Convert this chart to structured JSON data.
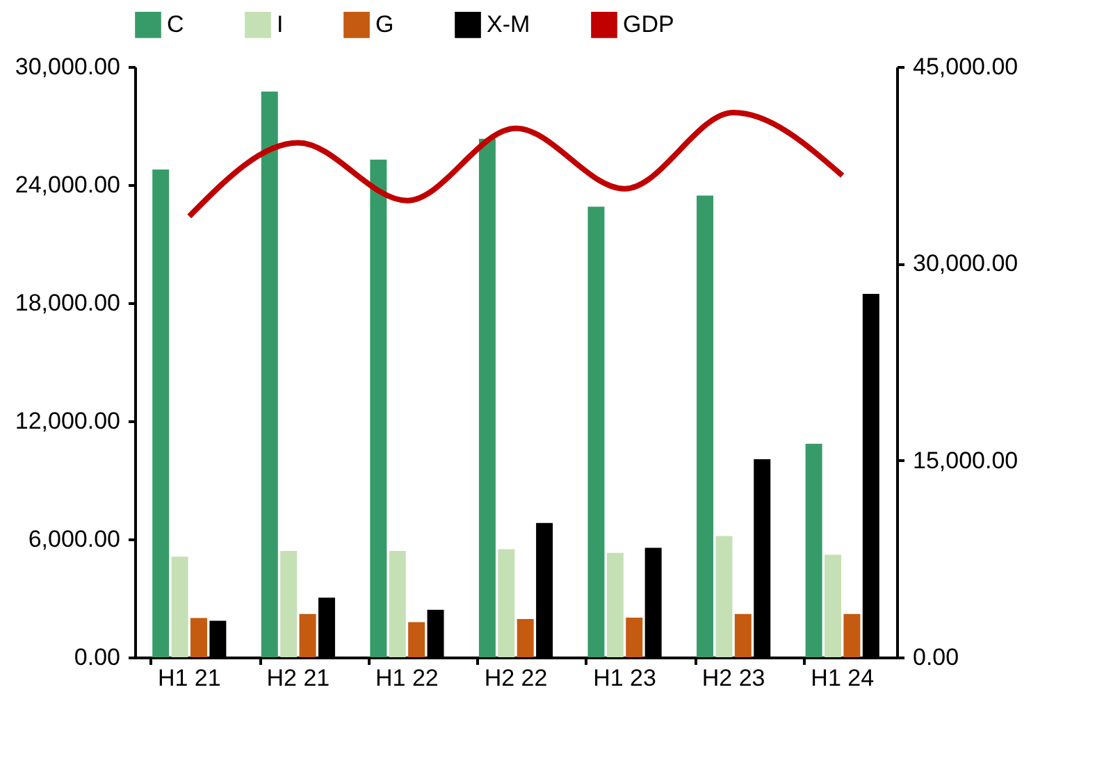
{
  "chart_data": {
    "type": "bar",
    "categories": [
      "H1 21",
      "H2 21",
      "H1 22",
      "H2 22",
      "H1 23",
      "H2 23",
      "H1 24"
    ],
    "series": [
      {
        "name": "C",
        "color": "#379b69",
        "values": [
          24780,
          28740,
          25280,
          26340,
          22890,
          23450,
          10840
        ]
      },
      {
        "name": "I",
        "color": "#c5e0b4",
        "values": [
          5110,
          5400,
          5400,
          5490,
          5300,
          6160,
          5210
        ]
      },
      {
        "name": "G",
        "color": "#c55a11",
        "values": [
          1990,
          2200,
          1780,
          1940,
          2010,
          2200,
          2200
        ]
      },
      {
        "name": "X-M",
        "color": "#000000",
        "values": [
          1850,
          3030,
          2410,
          6820,
          5560,
          10060,
          18460
        ]
      },
      {
        "name": "GDP",
        "type": "line",
        "axis": "y2",
        "color": "#c00000",
        "values": [
          33600,
          39200,
          34800,
          40300,
          35700,
          41500,
          36700
        ]
      }
    ],
    "ylim": [
      0,
      30000
    ],
    "yticks": [
      {
        "value": 0,
        "label": "0.00"
      },
      {
        "value": 6000,
        "label": "6,000.00"
      },
      {
        "value": 12000,
        "label": "12,000.00"
      },
      {
        "value": 18000,
        "label": "18,000.00"
      },
      {
        "value": 24000,
        "label": "24,000.00"
      },
      {
        "value": 30000,
        "label": "30,000.00"
      }
    ],
    "y2lim": [
      0,
      45000
    ],
    "y2ticks": [
      {
        "value": 0,
        "label": "0.00"
      },
      {
        "value": 15000,
        "label": "15,000.00"
      },
      {
        "value": 30000,
        "label": "30,000.00"
      },
      {
        "value": 45000,
        "label": "45,000.00"
      }
    ],
    "grid": false,
    "legend": "top",
    "marker": "none",
    "line_style": "solid"
  }
}
